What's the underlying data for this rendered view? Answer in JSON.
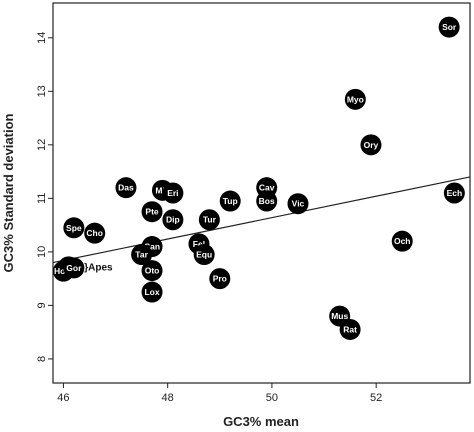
{
  "chart_data": {
    "type": "scatter",
    "title": "",
    "xlabel": "GC3% mean",
    "ylabel": "GC3% Standard deviation",
    "xlim": [
      45.8,
      53.8
    ],
    "ylim": [
      7.55,
      14.65
    ],
    "xticks": [
      46,
      48,
      50,
      52
    ],
    "yticks": [
      8,
      9,
      10,
      11,
      12,
      13,
      14
    ],
    "grid": false,
    "legend": "none",
    "marker_color": "#000000",
    "label_color": "#ffffff",
    "trendline": {
      "x": [
        45.8,
        53.8
      ],
      "y": [
        9.8,
        11.4
      ]
    },
    "annotation": {
      "text": "}Apes",
      "x": 46.4,
      "y": 9.72
    },
    "points": [
      {
        "label": "Sor",
        "x": 53.4,
        "y": 14.2
      },
      {
        "label": "Myo",
        "x": 51.6,
        "y": 12.85
      },
      {
        "label": "Ory",
        "x": 51.9,
        "y": 12.0
      },
      {
        "label": "Ech",
        "x": 53.5,
        "y": 11.1
      },
      {
        "label": "Och",
        "x": 52.5,
        "y": 10.2
      },
      {
        "label": "Mus",
        "x": 51.3,
        "y": 8.8
      },
      {
        "label": "Rat",
        "x": 51.5,
        "y": 8.55
      },
      {
        "label": "Das",
        "x": 47.2,
        "y": 11.2
      },
      {
        "label": "Mic",
        "x": 47.9,
        "y": 11.15
      },
      {
        "label": "Eri",
        "x": 48.1,
        "y": 11.1
      },
      {
        "label": "Cav",
        "x": 49.9,
        "y": 11.2
      },
      {
        "label": "Bos",
        "x": 49.9,
        "y": 10.95
      },
      {
        "label": "Vic",
        "x": 50.5,
        "y": 10.9
      },
      {
        "label": "Tup",
        "x": 49.2,
        "y": 10.95
      },
      {
        "label": "Pte",
        "x": 47.7,
        "y": 10.75
      },
      {
        "label": "Dip",
        "x": 48.1,
        "y": 10.6
      },
      {
        "label": "Tur",
        "x": 48.8,
        "y": 10.6
      },
      {
        "label": "Spe",
        "x": 46.2,
        "y": 10.45
      },
      {
        "label": "Cho",
        "x": 46.6,
        "y": 10.35
      },
      {
        "label": "Fel",
        "x": 48.6,
        "y": 10.15
      },
      {
        "label": "Equ",
        "x": 48.7,
        "y": 9.95
      },
      {
        "label": "Can",
        "x": 47.7,
        "y": 10.1
      },
      {
        "label": "Tar",
        "x": 47.5,
        "y": 9.95
      },
      {
        "label": "Oto",
        "x": 47.7,
        "y": 9.65
      },
      {
        "label": "Pro",
        "x": 49.0,
        "y": 9.5
      },
      {
        "label": "Lox",
        "x": 47.7,
        "y": 9.25
      },
      {
        "label": "Pan",
        "x": 46.1,
        "y": 9.72
      },
      {
        "label": "Hom",
        "x": 46.0,
        "y": 9.64
      },
      {
        "label": "Gor",
        "x": 46.2,
        "y": 9.7
      }
    ]
  }
}
